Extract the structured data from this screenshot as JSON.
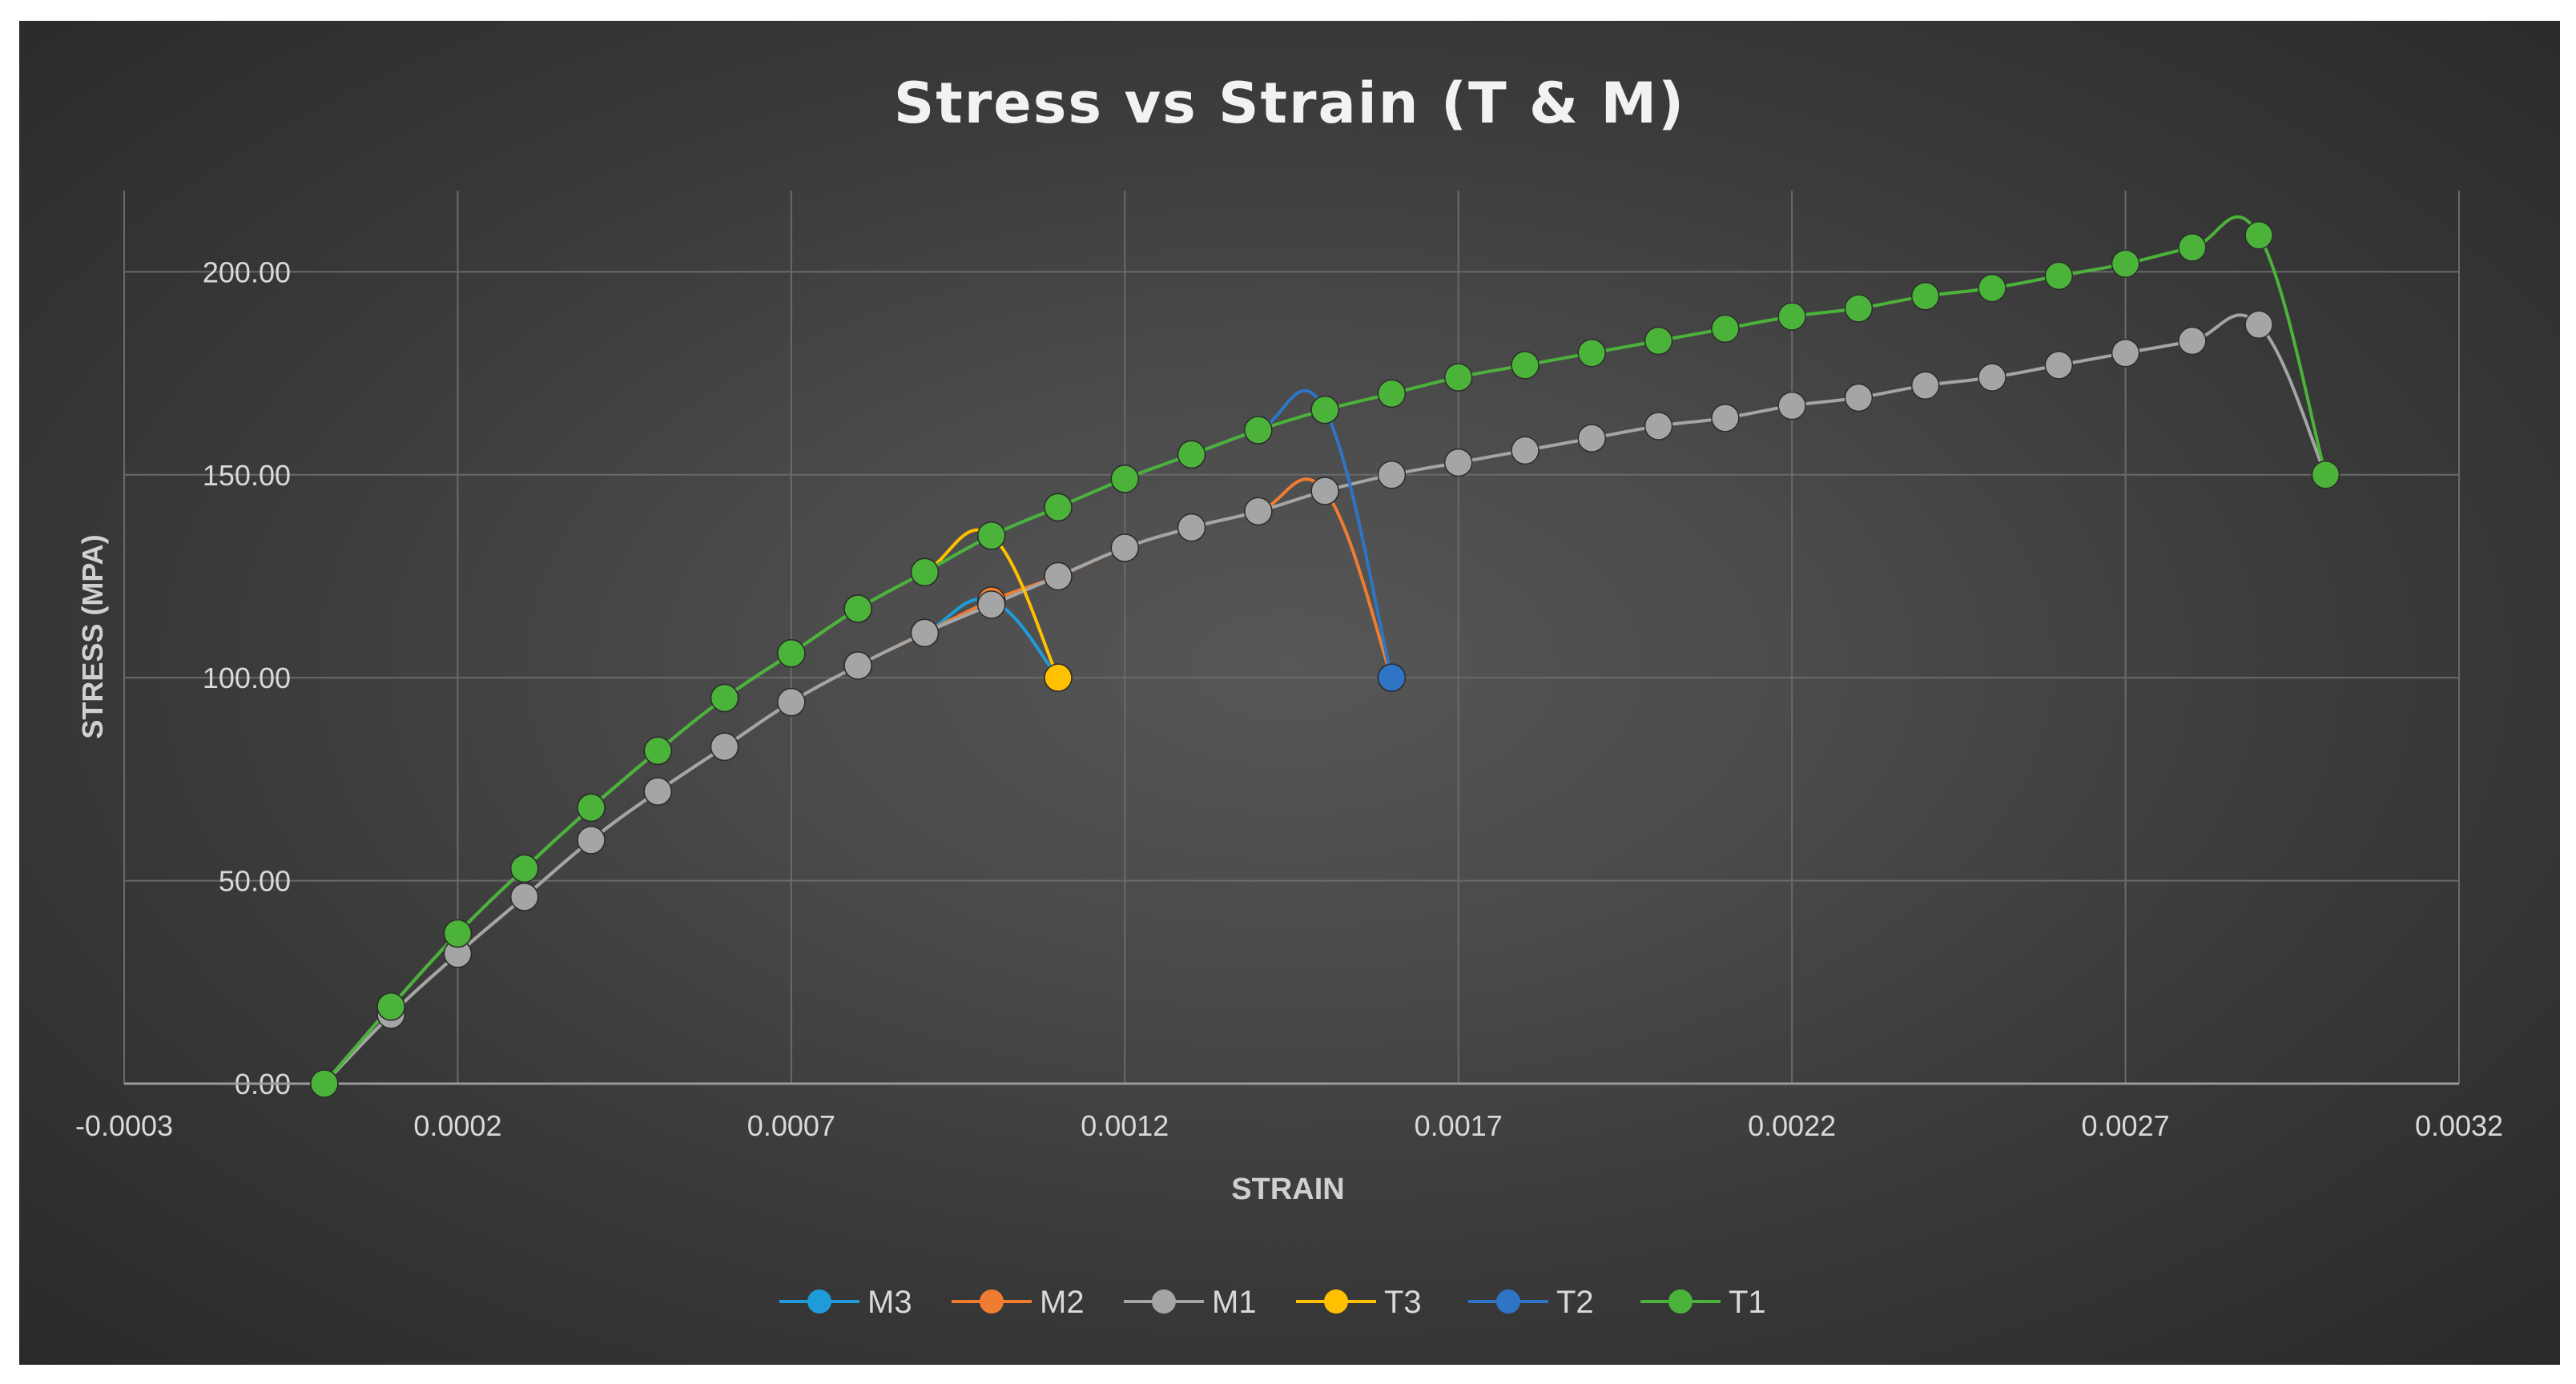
{
  "chart_data": {
    "type": "scatter",
    "title": "Stress vs Strain (T & M)",
    "xlabel": "STRAIN",
    "ylabel": "STRESS (MPA)",
    "xlim": [
      -0.0003,
      0.0032
    ],
    "ylim": [
      0,
      220
    ],
    "grid": true,
    "legend_position": "bottom",
    "x_tick_labels": [
      "-0.0003",
      "0.0002",
      "0.0007",
      "0.0012",
      "0.0017",
      "0.0022",
      "0.0027",
      "0.0032"
    ],
    "x_tick_values": [
      -0.0003,
      0.0002,
      0.0007,
      0.0012,
      0.0017,
      0.0022,
      0.0027,
      0.0032
    ],
    "y_tick_labels": [
      "0.00",
      "50.00",
      "100.00",
      "150.00",
      "200.00"
    ],
    "y_tick_values": [
      0,
      50,
      100,
      150,
      200
    ],
    "series": [
      {
        "name": "M3",
        "color": "#1f9bd9",
        "x": [
          0,
          0.0001,
          0.0002,
          0.0003,
          0.0004,
          0.0005,
          0.0006,
          0.0007,
          0.0008,
          0.0009,
          0.001,
          0.0011
        ],
        "y": [
          0,
          17,
          32,
          46,
          60,
          72,
          83,
          94,
          103,
          111,
          119,
          100
        ]
      },
      {
        "name": "M2",
        "color": "#ee7d31",
        "x": [
          0,
          0.0001,
          0.0002,
          0.0003,
          0.0004,
          0.0005,
          0.0006,
          0.0007,
          0.0008,
          0.0009,
          0.001,
          0.0011,
          0.0012,
          0.0013,
          0.0014,
          0.0015,
          0.0016
        ],
        "y": [
          0,
          17,
          32,
          46,
          60,
          72,
          83,
          94,
          103,
          111,
          119,
          125,
          132,
          137,
          141,
          146,
          100
        ]
      },
      {
        "name": "M1",
        "color": "#a5a5a5",
        "x": [
          0,
          0.0001,
          0.0002,
          0.0003,
          0.0004,
          0.0005,
          0.0006,
          0.0007,
          0.0008,
          0.0009,
          0.001,
          0.0011,
          0.0012,
          0.0013,
          0.0014,
          0.0015,
          0.0016,
          0.0017,
          0.0018,
          0.0019,
          0.002,
          0.0021,
          0.0022,
          0.0023,
          0.0024,
          0.0025,
          0.0026,
          0.0027,
          0.0028,
          0.0029,
          0.003
        ],
        "y": [
          0,
          17,
          32,
          46,
          60,
          72,
          83,
          94,
          103,
          111,
          118,
          125,
          132,
          137,
          141,
          146,
          150,
          153,
          156,
          159,
          162,
          164,
          167,
          169,
          172,
          174,
          177,
          180,
          183,
          187,
          150
        ]
      },
      {
        "name": "T3",
        "color": "#ffc000",
        "x": [
          0,
          0.0001,
          0.0002,
          0.0003,
          0.0004,
          0.0005,
          0.0006,
          0.0007,
          0.0008,
          0.0009,
          0.001,
          0.0011
        ],
        "y": [
          0,
          19,
          37,
          53,
          68,
          82,
          95,
          106,
          117,
          126,
          135,
          100
        ]
      },
      {
        "name": "T2",
        "color": "#2e75c5",
        "x": [
          0,
          0.0001,
          0.0002,
          0.0003,
          0.0004,
          0.0005,
          0.0006,
          0.0007,
          0.0008,
          0.0009,
          0.001,
          0.0011,
          0.0012,
          0.0013,
          0.0014,
          0.0015,
          0.0016
        ],
        "y": [
          0,
          19,
          37,
          53,
          68,
          82,
          95,
          106,
          117,
          126,
          135,
          142,
          149,
          155,
          161,
          166,
          100
        ]
      },
      {
        "name": "T1",
        "color": "#4cb33a",
        "x": [
          0,
          0.0001,
          0.0002,
          0.0003,
          0.0004,
          0.0005,
          0.0006,
          0.0007,
          0.0008,
          0.0009,
          0.001,
          0.0011,
          0.0012,
          0.0013,
          0.0014,
          0.0015,
          0.0016,
          0.0017,
          0.0018,
          0.0019,
          0.002,
          0.0021,
          0.0022,
          0.0023,
          0.0024,
          0.0025,
          0.0026,
          0.0027,
          0.0028,
          0.0029,
          0.003
        ],
        "y": [
          0,
          19,
          37,
          53,
          68,
          82,
          95,
          106,
          117,
          126,
          135,
          142,
          149,
          155,
          161,
          166,
          170,
          174,
          177,
          180,
          183,
          186,
          189,
          191,
          194,
          196,
          199,
          202,
          206,
          209,
          150
        ]
      }
    ]
  }
}
